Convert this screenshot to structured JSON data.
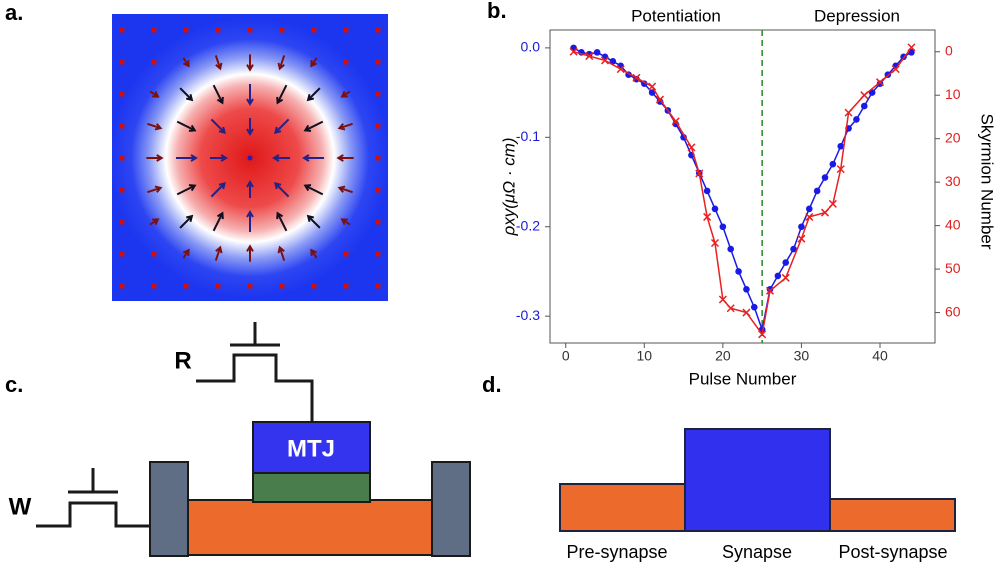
{
  "panels": {
    "a": "a.",
    "b": "b.",
    "c": "c.",
    "d": "d."
  },
  "circuit": {
    "read": "R",
    "write": "W",
    "mtj": "MTJ"
  },
  "synapse": {
    "pre": "Pre-synapse",
    "syn": "Synapse",
    "post": "Post-synapse"
  },
  "chart_data": {
    "type": "line",
    "xlabel": "Pulse Number",
    "ylabel": "ρxy(μΩ · cm)",
    "y2label": "Skyrmion Number",
    "annotations": [
      "Potentiation",
      "Depression"
    ],
    "vline": 25,
    "vline_color": "#228b22",
    "xlim": [
      -2,
      47
    ],
    "xticks": [
      0,
      10,
      20,
      30,
      40
    ],
    "ylim": [
      -0.33,
      0.02
    ],
    "yticks": [
      {
        "value": 0,
        "label": "0.0"
      },
      -0.1,
      -0.2,
      -0.3
    ],
    "ytick_color": "#1a1ad6",
    "y2lim": [
      67,
      -5
    ],
    "y2ticks": [
      0,
      10,
      20,
      30,
      40,
      50,
      60
    ],
    "y2tick_color": "#e0201c",
    "series": [
      {
        "color": "#1a1ae6",
        "marker": "dot",
        "axis": "y",
        "x": [
          1,
          2,
          3,
          4,
          5,
          6,
          7,
          8,
          9,
          10,
          11,
          12,
          13,
          14,
          15,
          16,
          17,
          18,
          19,
          20,
          21,
          22,
          23,
          24,
          25,
          26,
          27,
          28,
          29,
          30,
          31,
          32,
          33,
          34,
          35,
          36,
          37,
          38,
          39,
          40,
          41,
          42,
          43,
          44
        ],
        "values": [
          0,
          -0.005,
          -0.007,
          -0.005,
          -0.01,
          -0.015,
          -0.02,
          -0.03,
          -0.035,
          -0.04,
          -0.05,
          -0.06,
          -0.07,
          -0.085,
          -0.1,
          -0.12,
          -0.14,
          -0.16,
          -0.18,
          -0.2,
          -0.225,
          -0.25,
          -0.27,
          -0.29,
          -0.315,
          -0.27,
          -0.255,
          -0.24,
          -0.225,
          -0.2,
          -0.18,
          -0.16,
          -0.145,
          -0.13,
          -0.11,
          -0.09,
          -0.08,
          -0.065,
          -0.05,
          -0.04,
          -0.03,
          -0.02,
          -0.01,
          -0.005
        ]
      },
      {
        "color": "#e82020",
        "marker": "cross",
        "axis": "y2",
        "x": [
          1,
          3,
          5,
          7,
          9,
          11,
          12,
          14,
          16,
          17,
          18,
          19,
          20,
          21,
          23,
          25,
          26,
          28,
          30,
          31,
          33,
          34,
          35,
          36,
          38,
          40,
          42,
          44
        ],
        "values": [
          0,
          1,
          2,
          4,
          6,
          8,
          11,
          16,
          22,
          28,
          38,
          44,
          57,
          59,
          60,
          65,
          55,
          52,
          43,
          38,
          37,
          35,
          27,
          14,
          10,
          7,
          4,
          -1
        ]
      }
    ]
  }
}
